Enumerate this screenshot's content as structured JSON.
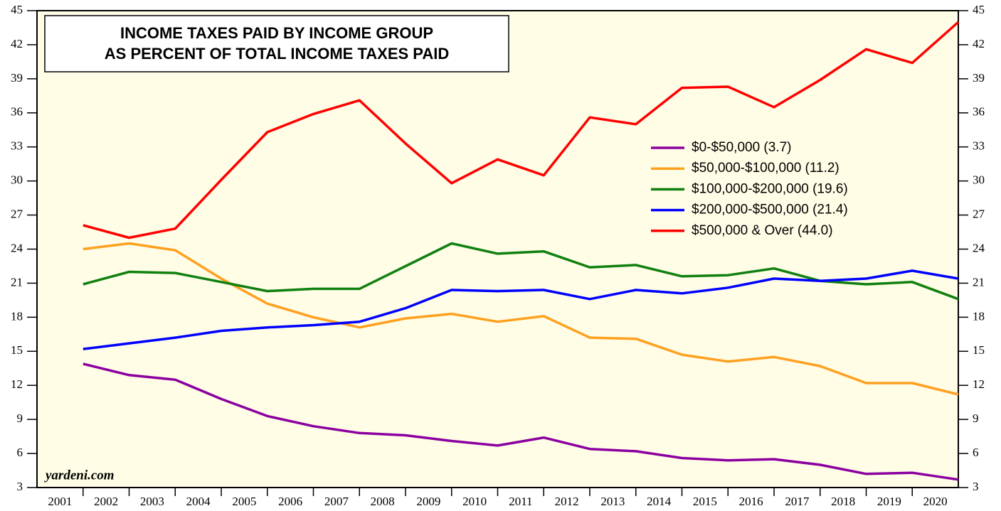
{
  "chart_data": {
    "type": "line",
    "title": [
      "INCOME TAXES PAID BY INCOME GROUP",
      "AS PERCENT OF TOTAL INCOME TAXES PAID"
    ],
    "source": "yardeni.com",
    "categories": [
      "2001",
      "2002",
      "2003",
      "2004",
      "2005",
      "2006",
      "2007",
      "2008",
      "2009",
      "2010",
      "2011",
      "2012",
      "2013",
      "2014",
      "2015",
      "2016",
      "2017",
      "2018",
      "2019",
      "2020"
    ],
    "ylim": [
      3,
      45
    ],
    "yticks": [
      3,
      6,
      9,
      12,
      15,
      18,
      21,
      24,
      27,
      30,
      33,
      36,
      39,
      42,
      45
    ],
    "series": [
      {
        "name": "$0-$50,000 (3.7)",
        "color": "#8b00a0",
        "values": [
          13.9,
          12.9,
          12.5,
          10.8,
          9.3,
          8.4,
          7.8,
          7.6,
          7.1,
          6.7,
          7.4,
          6.4,
          6.2,
          5.6,
          5.4,
          5.5,
          5.0,
          4.2,
          4.3,
          3.7
        ]
      },
      {
        "name": "$50,000-$100,000 (11.2)",
        "color": "#ffa020",
        "values": [
          24.0,
          24.5,
          23.9,
          21.4,
          19.2,
          18.0,
          17.1,
          17.9,
          18.3,
          17.6,
          18.1,
          16.2,
          16.1,
          14.7,
          14.1,
          14.5,
          13.7,
          12.2,
          12.2,
          11.2
        ]
      },
      {
        "name": "$100,000-$200,000 (19.6)",
        "color": "#108010",
        "values": [
          20.9,
          22.0,
          21.9,
          21.1,
          20.3,
          20.5,
          20.5,
          22.5,
          24.5,
          23.6,
          23.8,
          22.4,
          22.6,
          21.6,
          21.7,
          22.3,
          21.2,
          20.9,
          21.1,
          19.6
        ]
      },
      {
        "name": "$200,000-$500,000 (21.4)",
        "color": "#0000ff",
        "values": [
          15.2,
          15.7,
          16.2,
          16.8,
          17.1,
          17.3,
          17.6,
          18.8,
          20.4,
          20.3,
          20.4,
          19.6,
          20.4,
          20.1,
          20.6,
          21.4,
          21.2,
          21.4,
          22.1,
          21.4
        ]
      },
      {
        "name": "$500,000 & Over (44.0)",
        "color": "#ff0000",
        "values": [
          26.1,
          25.0,
          25.8,
          30.1,
          34.3,
          35.9,
          37.1,
          33.3,
          29.8,
          31.9,
          30.5,
          35.6,
          35.0,
          38.2,
          38.3,
          36.5,
          38.9,
          41.6,
          40.4,
          44.0
        ]
      }
    ]
  }
}
